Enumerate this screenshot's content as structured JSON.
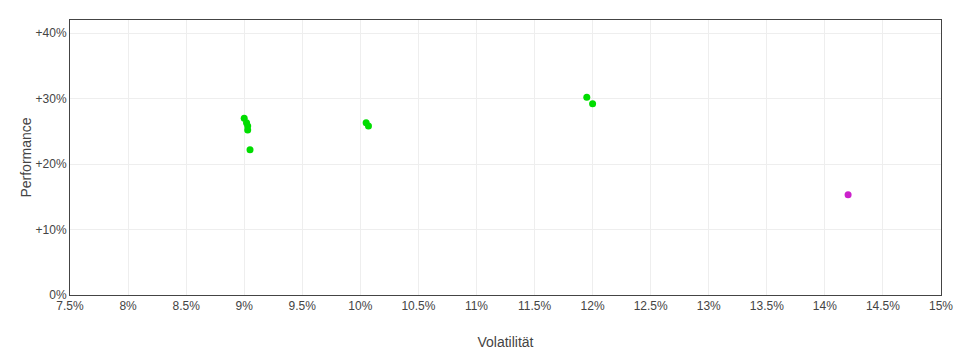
{
  "chart_data": {
    "type": "scatter",
    "xlabel": "Volatilität",
    "ylabel": "Performance",
    "xlim": [
      0.075,
      0.15
    ],
    "ylim": [
      0.0,
      0.42
    ],
    "xticks": [
      {
        "value": 0.075,
        "label": "7.5%"
      },
      {
        "value": 0.08,
        "label": "8%"
      },
      {
        "value": 0.085,
        "label": "8.5%"
      },
      {
        "value": 0.09,
        "label": "9%"
      },
      {
        "value": 0.095,
        "label": "9.5%"
      },
      {
        "value": 0.1,
        "label": "10%"
      },
      {
        "value": 0.105,
        "label": "10.5%"
      },
      {
        "value": 0.11,
        "label": "11%"
      },
      {
        "value": 0.115,
        "label": "11.5%"
      },
      {
        "value": 0.12,
        "label": "12%"
      },
      {
        "value": 0.125,
        "label": "12.5%"
      },
      {
        "value": 0.13,
        "label": "13%"
      },
      {
        "value": 0.135,
        "label": "13.5%"
      },
      {
        "value": 0.14,
        "label": "14%"
      },
      {
        "value": 0.145,
        "label": "14.5%"
      },
      {
        "value": 0.15,
        "label": "15%"
      }
    ],
    "yticks": [
      {
        "value": 0.0,
        "label": "0%"
      },
      {
        "value": 0.1,
        "label": "+10%"
      },
      {
        "value": 0.2,
        "label": "+20%"
      },
      {
        "value": 0.3,
        "label": "+30%"
      },
      {
        "value": 0.4,
        "label": "+40%"
      }
    ],
    "grid": true,
    "series": [
      {
        "color": "#00dd00",
        "x": [
          0.09,
          0.0902,
          0.0903,
          0.0903,
          0.0905,
          0.1005,
          0.1007,
          0.1195,
          0.12
        ],
        "values": [
          0.27,
          0.263,
          0.258,
          0.252,
          0.222,
          0.263,
          0.258,
          0.302,
          0.292
        ]
      },
      {
        "color": "#cc22cc",
        "x": [
          0.142
        ],
        "values": [
          0.153
        ]
      }
    ]
  }
}
